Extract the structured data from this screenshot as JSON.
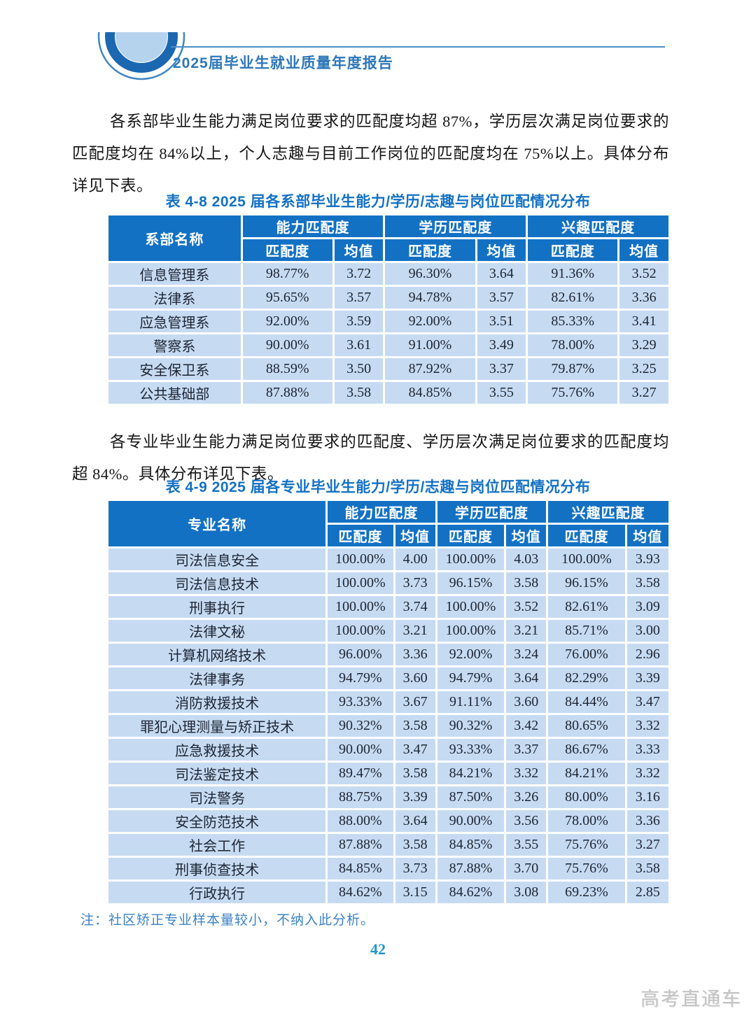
{
  "header": {
    "report_title": "2025届毕业生就业质量年度报告"
  },
  "paragraphs": {
    "p1": "各系部毕业生能力满足岗位要求的匹配度均超 87%，学历层次满足岗位要求的匹配度均在 84%以上，个人志趣与目前工作岗位的匹配度均在 75%以上。具体分布详见下表。",
    "p2": "各专业毕业生能力满足岗位要求的匹配度、学历层次满足岗位要求的匹配度均超 84%。具体分布详见下表。"
  },
  "table1": {
    "title": "表 4-8  2025 届各系部毕业生能力/学历/志趣与岗位匹配情况分布",
    "col1_header": "系部名称",
    "group_headers": [
      "能力匹配度",
      "学历匹配度",
      "兴趣匹配度"
    ],
    "sub_match": "匹配度",
    "sub_mean": "均值",
    "rows": [
      {
        "name": "信息管理系",
        "values": [
          "98.77%",
          "3.72",
          "96.30%",
          "3.64",
          "91.36%",
          "3.52"
        ]
      },
      {
        "name": "法律系",
        "values": [
          "95.65%",
          "3.57",
          "94.78%",
          "3.57",
          "82.61%",
          "3.36"
        ]
      },
      {
        "name": "应急管理系",
        "values": [
          "92.00%",
          "3.59",
          "92.00%",
          "3.51",
          "85.33%",
          "3.41"
        ]
      },
      {
        "name": "警察系",
        "values": [
          "90.00%",
          "3.61",
          "91.00%",
          "3.49",
          "78.00%",
          "3.29"
        ]
      },
      {
        "name": "安全保卫系",
        "values": [
          "88.59%",
          "3.50",
          "87.92%",
          "3.37",
          "79.87%",
          "3.25"
        ]
      },
      {
        "name": "公共基础部",
        "values": [
          "87.88%",
          "3.58",
          "84.85%",
          "3.55",
          "75.76%",
          "3.27"
        ]
      }
    ]
  },
  "table2": {
    "title": "表 4-9  2025 届各专业毕业生能力/学历/志趣与岗位匹配情况分布",
    "col1_header": "专业名称",
    "group_headers": [
      "能力匹配度",
      "学历匹配度",
      "兴趣匹配度"
    ],
    "sub_match": "匹配度",
    "sub_mean": "均值",
    "rows": [
      {
        "name": "司法信息安全",
        "values": [
          "100.00%",
          "4.00",
          "100.00%",
          "4.03",
          "100.00%",
          "3.93"
        ]
      },
      {
        "name": "司法信息技术",
        "values": [
          "100.00%",
          "3.73",
          "96.15%",
          "3.58",
          "96.15%",
          "3.58"
        ]
      },
      {
        "name": "刑事执行",
        "values": [
          "100.00%",
          "3.74",
          "100.00%",
          "3.52",
          "82.61%",
          "3.09"
        ]
      },
      {
        "name": "法律文秘",
        "values": [
          "100.00%",
          "3.21",
          "100.00%",
          "3.21",
          "85.71%",
          "3.00"
        ]
      },
      {
        "name": "计算机网络技术",
        "values": [
          "96.00%",
          "3.36",
          "92.00%",
          "3.24",
          "76.00%",
          "2.96"
        ]
      },
      {
        "name": "法律事务",
        "values": [
          "94.79%",
          "3.60",
          "94.79%",
          "3.64",
          "82.29%",
          "3.39"
        ]
      },
      {
        "name": "消防救援技术",
        "values": [
          "93.33%",
          "3.67",
          "91.11%",
          "3.60",
          "84.44%",
          "3.47"
        ]
      },
      {
        "name": "罪犯心理测量与矫正技术",
        "values": [
          "90.32%",
          "3.58",
          "90.32%",
          "3.42",
          "80.65%",
          "3.32"
        ]
      },
      {
        "name": "应急救援技术",
        "values": [
          "90.00%",
          "3.47",
          "93.33%",
          "3.37",
          "86.67%",
          "3.33"
        ]
      },
      {
        "name": "司法鉴定技术",
        "values": [
          "89.47%",
          "3.58",
          "84.21%",
          "3.32",
          "84.21%",
          "3.32"
        ]
      },
      {
        "name": "司法警务",
        "values": [
          "88.75%",
          "3.39",
          "87.50%",
          "3.26",
          "80.00%",
          "3.16"
        ]
      },
      {
        "name": "安全防范技术",
        "values": [
          "88.00%",
          "3.64",
          "90.00%",
          "3.56",
          "78.00%",
          "3.36"
        ]
      },
      {
        "name": "社会工作",
        "values": [
          "87.88%",
          "3.58",
          "84.85%",
          "3.55",
          "75.76%",
          "3.27"
        ]
      },
      {
        "name": "刑事侦查技术",
        "values": [
          "84.85%",
          "3.73",
          "87.88%",
          "3.70",
          "75.76%",
          "3.58"
        ]
      },
      {
        "name": "行政执行",
        "values": [
          "84.62%",
          "3.15",
          "84.62%",
          "3.08",
          "69.23%",
          "2.85"
        ]
      }
    ]
  },
  "note": "注：社区矫正专业样本量较小，不纳入此分析。",
  "page_number": "42",
  "watermark": "高考直通车",
  "colors": {
    "table_header_blue": "#1371c4",
    "table_cell_blue": "#c6dbf2",
    "caption_blue": "#1371c4",
    "header_title_blue": "#2d77b9",
    "header_rule_blue": "#4a8ec6",
    "note_blue": "#3b82c4",
    "page_number_cyan": "#2095cc",
    "watermark_gray": "#c3c3c3"
  }
}
